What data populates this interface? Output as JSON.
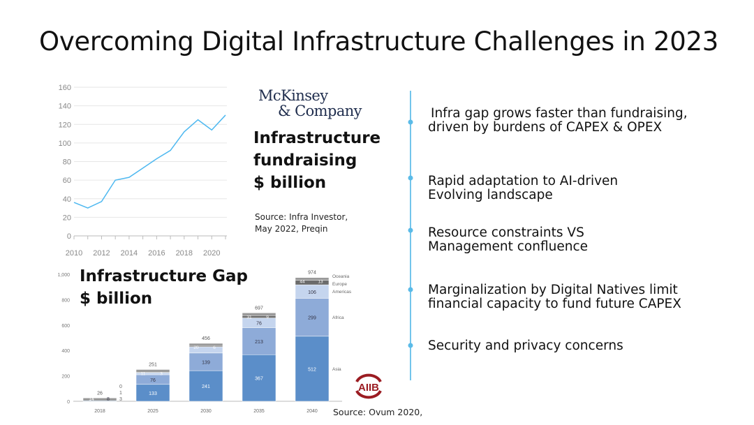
{
  "title": "Overcoming Digital Infrastructure Challenges in 2023",
  "fundraising": {
    "logo_text": [
      "McKinsey",
      "& Company"
    ],
    "heading": [
      "Infrastructure",
      "fundraising",
      "$ billion"
    ],
    "source": [
      "Source: Infra Investor,",
      "May 2022, Preqin"
    ]
  },
  "gap": {
    "heading": [
      "Infrastructure Gap",
      "$ billion"
    ],
    "logo_text": "AIIB",
    "source": "Source: Ovum 2020,"
  },
  "bullets": [
    [
      "Infra gap grows faster than fundraising,",
      "driven by burdens of CAPEX & OPEX"
    ],
    [
      "Rapid adaptation to AI-driven",
      "Evolving landscape"
    ],
    [
      "Resource constraints VS",
      "Management confluence"
    ],
    [
      "Marginalization by Digital Natives limit",
      "financial capacity to fund future CAPEX"
    ],
    [
      "Security and privacy concerns"
    ]
  ],
  "colors": {
    "line": "#4db8f0",
    "asia": "#5b8ec9",
    "africa": "#8eabd8",
    "americas": "#c5d5ee",
    "europe": "#6b6b6b",
    "oceania": "#9a9a9a",
    "timeline": "#5bbbe8",
    "aiib": "#9b1c22"
  },
  "chart_data": [
    {
      "type": "line",
      "title": "Infrastructure fundraising $ billion",
      "x": [
        2010,
        2011,
        2012,
        2013,
        2014,
        2015,
        2016,
        2017,
        2018,
        2019,
        2020,
        2021
      ],
      "values": [
        36,
        30,
        37,
        60,
        63,
        73,
        83,
        92,
        112,
        125,
        114,
        130
      ],
      "xticks": [
        "2010",
        "2012",
        "2014",
        "2016",
        "2018",
        "2020"
      ],
      "yticks": [
        "0",
        "20",
        "40",
        "60",
        "80",
        "100",
        "120",
        "140",
        "160"
      ],
      "ylim": [
        0,
        160
      ],
      "grid": true
    },
    {
      "type": "bar",
      "title": "Infrastructure Gap $ billion",
      "stacked": true,
      "categories": [
        "2018",
        "2025",
        "2030",
        "2035",
        "2040"
      ],
      "totals": [
        "26",
        "251",
        "456",
        "697",
        "974"
      ],
      "series": [
        {
          "name": "Asia",
          "values": [
            14,
            133,
            241,
            367,
            512
          ]
        },
        {
          "name": "Africa",
          "values": [
            8,
            76,
            139,
            213,
            299
          ]
        },
        {
          "name": "Americas",
          "values": [
            3,
            27,
            50,
            76,
            106
          ]
        },
        {
          "name": "Europe",
          "values": [
            1,
            11,
            20,
            31,
            44
          ]
        },
        {
          "name": "Oceania",
          "values": [
            0,
            3,
            6,
            9,
            13
          ]
        }
      ],
      "yticks": [
        "0",
        "200",
        "400",
        "600",
        "800",
        "1,000"
      ],
      "ylim": [
        0,
        1000
      ],
      "legend": "right"
    }
  ]
}
